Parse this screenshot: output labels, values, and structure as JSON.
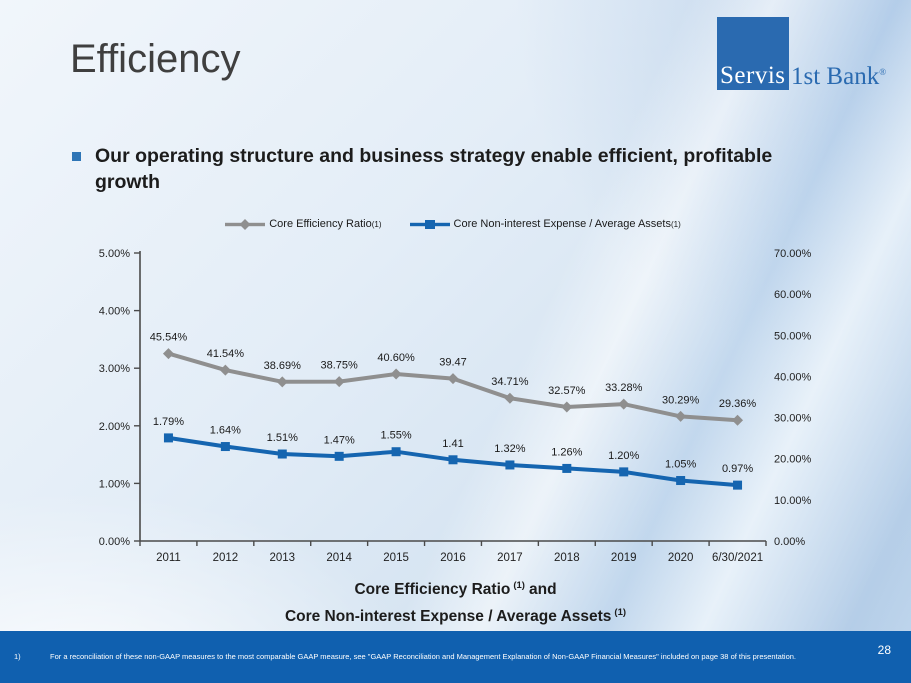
{
  "slide": {
    "title": "Efficiency",
    "bullet_text": "Our operating structure and business strategy enable efficient, profitable growth",
    "footnote_marker": "1)",
    "footnote_text": "For a reconciliation of these non-GAAP measures to the most comparable GAAP measure, see \"GAAP Reconciliation and Management Explanation of Non-GAAP Financial Measures\" included on page 38 of this presentation.",
    "page_number": "28"
  },
  "logo": {
    "square_text": "Servis",
    "right_text": "1st Bank",
    "registered": "®"
  },
  "colors": {
    "series_gray": "#8f8f8f",
    "series_blue": "#1565b0",
    "footer_bar": "#1060af",
    "logo_blue": "#2a6ab0",
    "bullet_blue": "#2e75b6",
    "axis_line": "#4a4a4a"
  },
  "legend": {
    "items": [
      {
        "label": "Core Efficiency Ratio",
        "sup": "(1)",
        "color": "#8f8f8f",
        "marker": "diamond"
      },
      {
        "label": "Core Non-interest Expense / Average Assets",
        "sup": "(1)",
        "color": "#1565b0",
        "marker": "square"
      }
    ]
  },
  "caption": {
    "line1_pre": "Core Efficiency Ratio",
    "sup1": "(1)",
    "line1_post": "and",
    "line2_pre": "Core Non-interest Expense / Average Assets",
    "sup2": "(1)"
  },
  "chart_data": {
    "type": "line",
    "title": "Core Efficiency Ratio (1) and Core Non-interest Expense / Average Assets (1)",
    "categories": [
      "2011",
      "2012",
      "2013",
      "2014",
      "2015",
      "2016",
      "2017",
      "2018",
      "2019",
      "2020",
      "6/30/2021"
    ],
    "series": [
      {
        "name": "Core Efficiency Ratio",
        "axis": "right",
        "color": "#8f8f8f",
        "marker": "diamond",
        "values": [
          45.54,
          41.54,
          38.69,
          38.75,
          40.6,
          39.47,
          34.71,
          32.57,
          33.28,
          30.29,
          29.36
        ],
        "labels": [
          "45.54%",
          "41.54%",
          "38.69%",
          "38.75%",
          "40.60%",
          "39.47",
          "34.71%",
          "32.57%",
          "33.28%",
          "30.29%",
          "29.36%"
        ]
      },
      {
        "name": "Core Non-interest Expense / Average Assets",
        "axis": "left",
        "color": "#1565b0",
        "marker": "square",
        "values": [
          1.79,
          1.64,
          1.51,
          1.47,
          1.55,
          1.41,
          1.32,
          1.26,
          1.2,
          1.05,
          0.97
        ],
        "labels": [
          "1.79%",
          "1.64%",
          "1.51%",
          "1.47%",
          "1.55%",
          "1.41",
          "1.32%",
          "1.26%",
          "1.20%",
          "1.05%",
          "0.97%"
        ]
      }
    ],
    "left_axis": {
      "min": 0,
      "max": 5,
      "ticks": [
        "0.00%",
        "1.00%",
        "2.00%",
        "3.00%",
        "4.00%",
        "5.00%"
      ]
    },
    "right_axis": {
      "min": 0,
      "max": 70,
      "ticks": [
        "0.00%",
        "10.00%",
        "20.00%",
        "30.00%",
        "40.00%",
        "50.00%",
        "60.00%",
        "70.00%"
      ]
    },
    "grid": false,
    "legend_position": "top"
  }
}
